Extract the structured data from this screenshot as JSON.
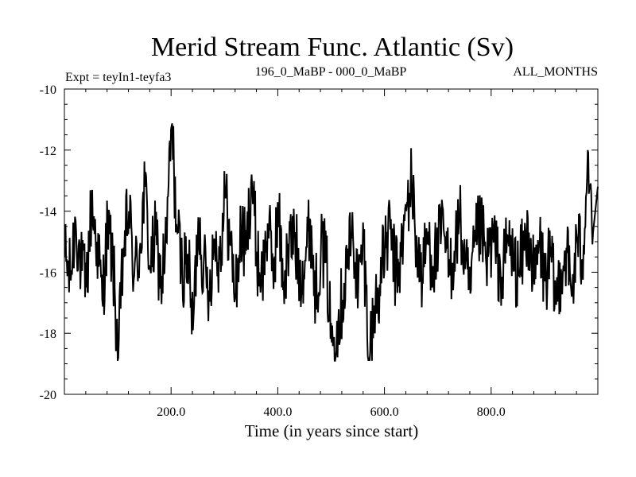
{
  "chart_data": {
    "type": "line",
    "title": "Merid Stream Func. Atlantic (Sv)",
    "subtitle_left": "Expt = teyIn1-teyfa3",
    "subtitle_center": "196_0_MaBP - 000_0_MaBP",
    "subtitle_right": "ALL_MONTHS",
    "xlabel": "Time (in years since start)",
    "ylabel": "",
    "xlim": [
      0,
      1000
    ],
    "ylim": [
      -20,
      -10
    ],
    "x_ticks": [
      200,
      400,
      600,
      800
    ],
    "x_tick_labels": [
      "200.0",
      "400.0",
      "600.0",
      "800.0"
    ],
    "y_ticks": [
      -20,
      -18,
      -16,
      -14,
      -12,
      -10
    ],
    "y_tick_labels": [
      "-20",
      "-18",
      "-16",
      "-14",
      "-12",
      "-10"
    ],
    "grid": false,
    "series": [
      {
        "name": "Merid Stream Func. Atlantic",
        "x_start": 1,
        "x_step": 10,
        "values": [
          -15.5,
          -16.2,
          -14.3,
          -15.8,
          -16.5,
          -13.8,
          -15.0,
          -16.9,
          -14.5,
          -15.7,
          -18.8,
          -15.2,
          -14.0,
          -16.1,
          -15.3,
          -13.2,
          -15.9,
          -14.8,
          -16.4,
          -15.0,
          -11.2,
          -14.6,
          -16.0,
          -15.4,
          -17.9,
          -14.2,
          -15.8,
          -16.6,
          -14.9,
          -15.6,
          -13.4,
          -15.1,
          -16.7,
          -14.7,
          -15.3,
          -12.8,
          -15.5,
          -16.2,
          -14.4,
          -15.9,
          -14.1,
          -16.3,
          -15.2,
          -14.8,
          -16.0,
          -15.6,
          -14.3,
          -16.8,
          -15.1,
          -15.7,
          -18.3,
          -17.6,
          -16.9,
          -15.4,
          -14.8,
          -16.5,
          -15.0,
          -18.8,
          -17.2,
          -16.4,
          -15.2,
          -14.6,
          -16.1,
          -15.5,
          -14.0,
          -13.0,
          -15.3,
          -16.2,
          -14.7,
          -15.8,
          -15.1,
          -14.6,
          -16.0,
          -15.3,
          -14.2,
          -15.9,
          -16.7,
          -15.0,
          -14.5,
          -15.8,
          -14.9,
          -15.5,
          -16.3,
          -14.8,
          -15.6,
          -16.1,
          -15.2,
          -14.7,
          -16.4,
          -15.0,
          -16.3,
          -15.5,
          -17.0,
          -15.9,
          -15.2,
          -16.8,
          -14.9,
          -15.6,
          -12.0,
          -14.7
        ],
        "extremes": {
          "min": -18.9,
          "max": -11.1
        }
      }
    ]
  }
}
